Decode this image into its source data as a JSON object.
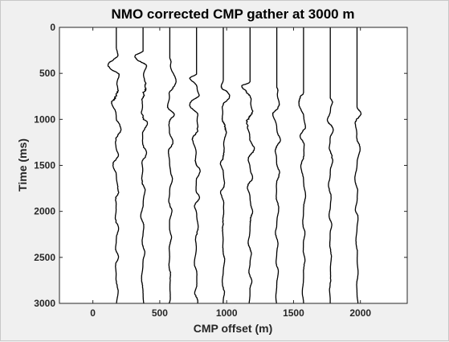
{
  "chart_data": {
    "type": "seismic-wiggle",
    "title": "NMO corrected CMP gather at 3000 m",
    "xlabel": "CMP offset (m)",
    "ylabel": "Time (ms)",
    "xlim": [
      -250,
      2350
    ],
    "ylim": [
      0,
      3000
    ],
    "y_reversed": true,
    "xticks": [
      0,
      500,
      1000,
      1500,
      2000
    ],
    "yticks": [
      0,
      500,
      1000,
      1500,
      2000,
      2500,
      3000
    ],
    "grid": false,
    "series": [
      {
        "offset": 175,
        "first_arrival_ms": 220,
        "max_amp": 220
      },
      {
        "offset": 375,
        "first_arrival_ms": 260,
        "max_amp": 190
      },
      {
        "offset": 575,
        "first_arrival_ms": 330,
        "max_amp": 170
      },
      {
        "offset": 775,
        "first_arrival_ms": 510,
        "max_amp": 200
      },
      {
        "offset": 975,
        "first_arrival_ms": 570,
        "max_amp": 160
      },
      {
        "offset": 1175,
        "first_arrival_ms": 590,
        "max_amp": 190
      },
      {
        "offset": 1375,
        "first_arrival_ms": 640,
        "max_amp": 140
      },
      {
        "offset": 1575,
        "first_arrival_ms": 700,
        "max_amp": 120
      },
      {
        "offset": 1775,
        "first_arrival_ms": 770,
        "max_amp": 110
      },
      {
        "offset": 1975,
        "first_arrival_ms": 860,
        "max_amp": 100
      }
    ]
  }
}
